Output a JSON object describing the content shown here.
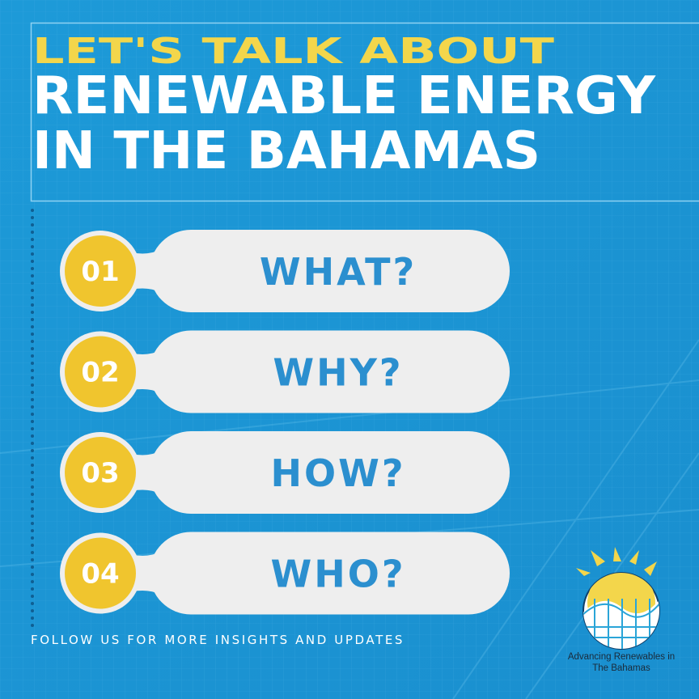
{
  "header": {
    "kicker": "LET'S TALK ABOUT",
    "title_lines": [
      "RENEWABLE ENERGY",
      "IN THE BAHAMAS"
    ]
  },
  "items": [
    {
      "number": "01",
      "label": "WHAT?"
    },
    {
      "number": "02",
      "label": "WHY?"
    },
    {
      "number": "03",
      "label": "HOW?"
    },
    {
      "number": "04",
      "label": "WHO?"
    }
  ],
  "footer": "FOLLOW US FOR MORE INSIGHTS AND UPDATES",
  "logo": {
    "caption_lines": [
      "Advancing Renewables in",
      "The Bahamas"
    ]
  }
}
